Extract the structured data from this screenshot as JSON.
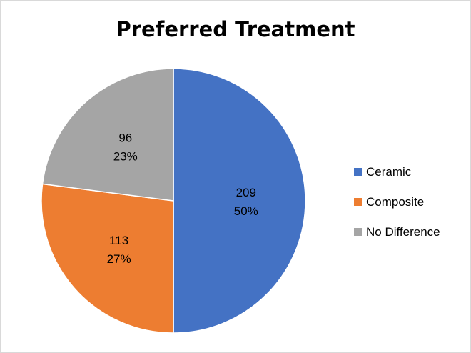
{
  "chart_data": {
    "type": "pie",
    "title": "Preferred Treatment",
    "slices": [
      {
        "label": "Ceramic",
        "value": 209,
        "percent_label": "50%",
        "color": "#4472C4"
      },
      {
        "label": "Composite",
        "value": 113,
        "percent_label": "27%",
        "color": "#ED7D31"
      },
      {
        "label": "No Difference",
        "value": 96,
        "percent_label": "23%",
        "color": "#A5A5A5"
      }
    ],
    "start_angle": "12 o'clock",
    "direction": "clockwise",
    "legend_position": "right"
  }
}
